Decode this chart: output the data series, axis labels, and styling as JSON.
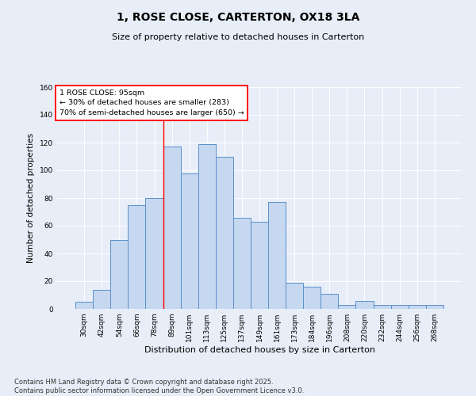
{
  "title": "1, ROSE CLOSE, CARTERTON, OX18 3LA",
  "subtitle": "Size of property relative to detached houses in Carterton",
  "xlabel": "Distribution of detached houses by size in Carterton",
  "ylabel": "Number of detached properties",
  "bar_color": "#c5d8f0",
  "bar_edge_color": "#5b8fc9",
  "background_color": "#e8eef8",
  "grid_color": "#ffffff",
  "categories": [
    "30sqm",
    "42sqm",
    "54sqm",
    "66sqm",
    "78sqm",
    "89sqm",
    "101sqm",
    "113sqm",
    "125sqm",
    "137sqm",
    "149sqm",
    "161sqm",
    "173sqm",
    "184sqm",
    "196sqm",
    "208sqm",
    "220sqm",
    "232sqm",
    "244sqm",
    "256sqm",
    "268sqm"
  ],
  "bar_heights": [
    5,
    14,
    50,
    75,
    80,
    117,
    98,
    119,
    110,
    66,
    63,
    77,
    19,
    16,
    11,
    3,
    6,
    3,
    3,
    3,
    3
  ],
  "ylim": [
    0,
    160
  ],
  "yticks": [
    0,
    20,
    40,
    60,
    80,
    100,
    120,
    140,
    160
  ],
  "vline_bin_index": 4.5,
  "annotation_text": "1 ROSE CLOSE: 95sqm\n← 30% of detached houses are smaller (283)\n70% of semi-detached houses are larger (650) →",
  "annotation_box_color": "white",
  "annotation_box_edge_color": "red",
  "footer": "Contains HM Land Registry data © Crown copyright and database right 2025.\nContains public sector information licensed under the Open Government Licence v3.0.",
  "fig_width": 6.0,
  "fig_height": 5.0,
  "dpi": 100
}
